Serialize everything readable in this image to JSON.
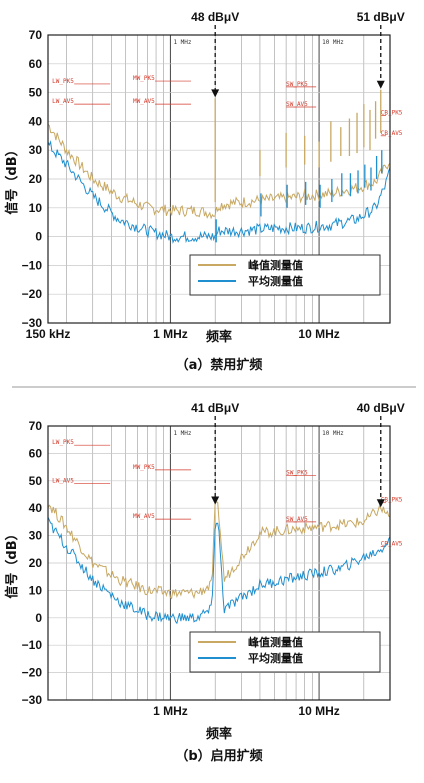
{
  "chart_data": [
    {
      "type": "line",
      "caption": "（a）禁用扩频",
      "ylabel": "信号（dB）",
      "xlabel": "频率",
      "xscale": "log",
      "xlim_hz": [
        150000,
        30000000
      ],
      "ylim": [
        -30,
        70
      ],
      "yticks": [
        "70",
        "60",
        "50",
        "40",
        "30",
        "20",
        "10",
        "0",
        "−10",
        "−20",
        "−30"
      ],
      "xticks": [
        {
          "label": "150 kHz",
          "hz": 150000
        },
        {
          "label": "1 MHz",
          "hz": 1000000
        },
        {
          "label": "10 MHz",
          "hz": 10000000
        }
      ],
      "top_markers": [
        "1 MHz",
        "10 MHz"
      ],
      "grid": true,
      "legend_position": "bottom-right",
      "annotations": [
        {
          "text": "48 dBμV",
          "x_hz": 2000000,
          "y": 48
        },
        {
          "text": "51 dBμV",
          "x_hz": 26000000,
          "y": 51
        }
      ],
      "limit_labels": [
        {
          "text": "LW_PK5",
          "x_hz": 160000,
          "y": 53
        },
        {
          "text": "LW_AV5",
          "x_hz": 160000,
          "y": 46
        },
        {
          "text": "MW_PK5",
          "x_hz": 560000,
          "y": 54
        },
        {
          "text": "MW_AV5",
          "x_hz": 560000,
          "y": 46
        },
        {
          "text": "SW_PK5",
          "x_hz": 6000000,
          "y": 52
        },
        {
          "text": "SW_AV5",
          "x_hz": 6000000,
          "y": 45
        },
        {
          "text": "CB_PK5",
          "x_hz": 26000000,
          "y": 42
        },
        {
          "text": "CB_AV5",
          "x_hz": 26000000,
          "y": 35
        }
      ],
      "series": [
        {
          "name": "峰值测量值",
          "color": "#c8a862",
          "x": [
            150000,
            200000,
            300000,
            450000,
            700000,
            1000000,
            1500000,
            2000000,
            2100000,
            3000000,
            5000000,
            8000000,
            12000000,
            18000000,
            24000000,
            28000000,
            30000000
          ],
          "values": [
            39,
            30,
            20,
            14,
            10,
            9,
            9,
            8,
            11,
            12,
            13,
            14,
            15,
            17,
            19,
            24,
            27
          ]
        },
        {
          "name": "平均测量值",
          "color": "#1f8fcf",
          "x": [
            150000,
            200000,
            300000,
            450000,
            700000,
            1000000,
            1500000,
            2000000,
            2100000,
            3000000,
            5000000,
            8000000,
            12000000,
            18000000,
            24000000,
            28000000,
            30000000
          ],
          "values": [
            32,
            25,
            14,
            6,
            2,
            0,
            0,
            0,
            2,
            2,
            3,
            3,
            4,
            6,
            10,
            18,
            23
          ]
        }
      ],
      "spikes": [
        {
          "x_hz": 2000000,
          "peak": 48,
          "avg": 6
        },
        {
          "x_hz": 4000000,
          "peak": 30,
          "avg": 15
        },
        {
          "x_hz": 6000000,
          "peak": 36,
          "avg": 18
        },
        {
          "x_hz": 8000000,
          "peak": 35,
          "avg": 19
        },
        {
          "x_hz": 10000000,
          "peak": 33,
          "avg": 18
        },
        {
          "x_hz": 12000000,
          "peak": 40,
          "avg": 20
        },
        {
          "x_hz": 14000000,
          "peak": 38,
          "avg": 22
        },
        {
          "x_hz": 16000000,
          "peak": 41,
          "avg": 22
        },
        {
          "x_hz": 18000000,
          "peak": 43,
          "avg": 23
        },
        {
          "x_hz": 20000000,
          "peak": 46,
          "avg": 25
        },
        {
          "x_hz": 22000000,
          "peak": 44,
          "avg": 24
        },
        {
          "x_hz": 24000000,
          "peak": 47,
          "avg": 28
        },
        {
          "x_hz": 26000000,
          "peak": 51,
          "avg": 30
        }
      ]
    },
    {
      "type": "line",
      "caption": "（b）启用扩频",
      "ylabel": "信号（dB）",
      "xlabel": "频率",
      "xscale": "log",
      "xlim_hz": [
        150000,
        30000000
      ],
      "ylim": [
        -30,
        70
      ],
      "yticks": [
        "70",
        "60",
        "50",
        "40",
        "30",
        "20",
        "10",
        "0",
        "−10",
        "−20",
        "−30"
      ],
      "xticks": [
        {
          "label": "1 MHz",
          "hz": 1000000
        },
        {
          "label": "10 MHz",
          "hz": 10000000
        }
      ],
      "top_markers": [
        "1 MHz",
        "10 MHz"
      ],
      "grid": true,
      "legend_position": "bottom-right",
      "annotations": [
        {
          "text": "41 dBμV",
          "x_hz": 2000000,
          "y": 41
        },
        {
          "text": "40 dBμV",
          "x_hz": 26000000,
          "y": 40
        }
      ],
      "limit_labels": [
        {
          "text": "LW_PK5",
          "x_hz": 160000,
          "y": 63
        },
        {
          "text": "LW_AV5",
          "x_hz": 160000,
          "y": 49
        },
        {
          "text": "MW_PK5",
          "x_hz": 560000,
          "y": 54
        },
        {
          "text": "MW_AV5",
          "x_hz": 560000,
          "y": 36
        },
        {
          "text": "SW_PK5",
          "x_hz": 6000000,
          "y": 52
        },
        {
          "text": "SW_AV5",
          "x_hz": 6000000,
          "y": 35
        },
        {
          "text": "CB_PK5",
          "x_hz": 26000000,
          "y": 42
        },
        {
          "text": "CB_AV5",
          "x_hz": 26000000,
          "y": 26
        }
      ],
      "series": [
        {
          "name": "峰值测量值",
          "color": "#c8a862",
          "x": [
            150000,
            200000,
            300000,
            450000,
            700000,
            1000000,
            1500000,
            1900000,
            2000000,
            2100000,
            2300000,
            4000000,
            6000000,
            9000000,
            14000000,
            20000000,
            26000000,
            30000000
          ],
          "values": [
            42,
            33,
            20,
            14,
            10,
            9,
            9,
            12,
            41,
            40,
            14,
            31,
            32,
            33,
            34,
            35,
            40,
            37
          ]
        },
        {
          "name": "平均测量值",
          "color": "#1f8fcf",
          "x": [
            150000,
            200000,
            300000,
            450000,
            700000,
            1000000,
            1500000,
            1900000,
            2000000,
            2100000,
            2300000,
            4000000,
            6000000,
            9000000,
            14000000,
            20000000,
            26000000,
            30000000
          ],
          "values": [
            35,
            26,
            14,
            6,
            1,
            0,
            0,
            3,
            35,
            34,
            3,
            12,
            14,
            16,
            18,
            22,
            25,
            29
          ]
        }
      ]
    }
  ]
}
